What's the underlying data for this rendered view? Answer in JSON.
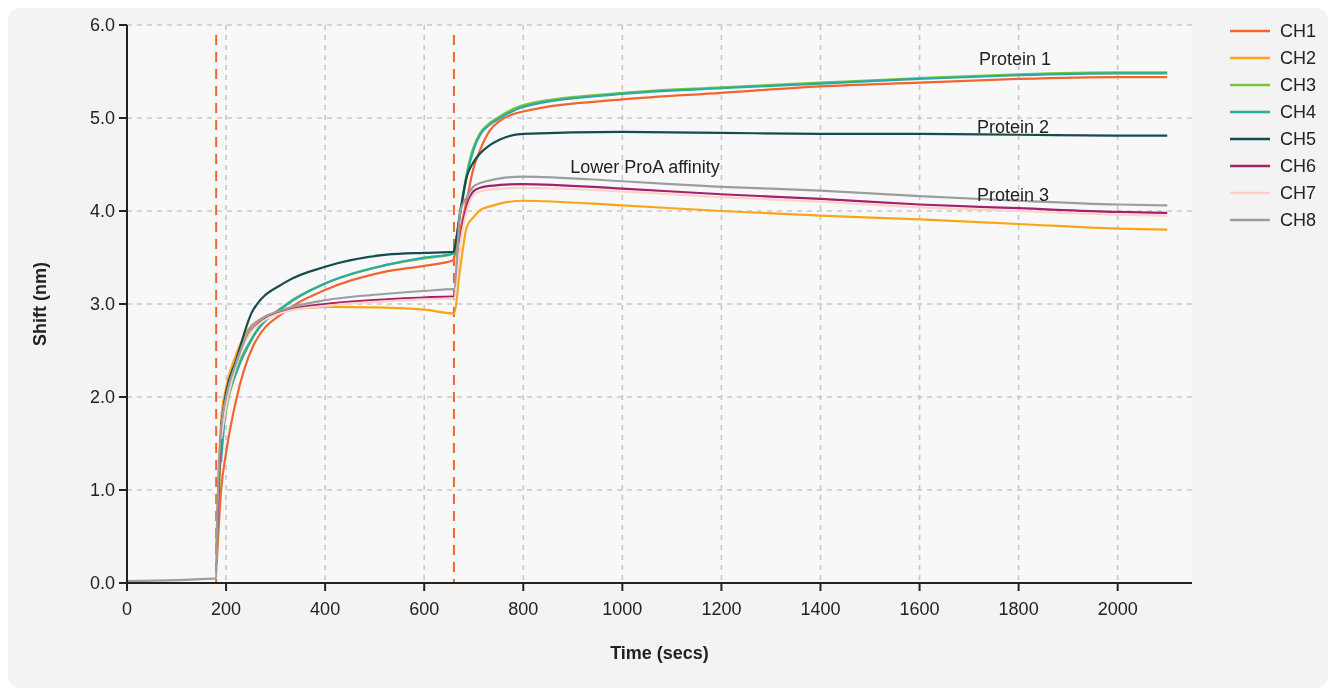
{
  "chart_data": {
    "type": "line",
    "xlabel": "Time (secs)",
    "ylabel": "Shift (nm)",
    "x": [
      0,
      180,
      181,
      190,
      200,
      220,
      254,
      322,
      400,
      524,
      600,
      659,
      660,
      673,
      686,
      699,
      713,
      733,
      753,
      800,
      1000,
      1200,
      1400,
      1600,
      1800,
      2000,
      2100
    ],
    "series": [
      {
        "name": "CH1",
        "color": "#f26430",
        "values": [
          null,
          null,
          0.2,
          1.0,
          1.4,
          1.96,
          2.54,
          2.93,
          3.15,
          3.35,
          3.41,
          3.47,
          3.49,
          3.8,
          4.12,
          4.45,
          4.66,
          4.87,
          4.97,
          5.07,
          5.2,
          5.27,
          5.34,
          5.38,
          5.42,
          5.44,
          5.44
        ]
      },
      {
        "name": "CH2",
        "color": "#f9a51a",
        "values": [
          null,
          null,
          0.5,
          1.75,
          2.1,
          2.45,
          2.78,
          2.93,
          2.97,
          2.96,
          2.94,
          2.9,
          2.9,
          3.4,
          3.83,
          3.93,
          4.01,
          4.05,
          4.08,
          4.11,
          4.06,
          4.0,
          3.95,
          3.91,
          3.86,
          3.81,
          3.8
        ]
      },
      {
        "name": "CH3",
        "color": "#7dc242",
        "values": [
          null,
          null,
          0.3,
          1.45,
          1.85,
          2.27,
          2.65,
          3.0,
          3.22,
          3.42,
          3.49,
          3.54,
          3.56,
          4.0,
          4.41,
          4.68,
          4.84,
          4.95,
          5.02,
          5.14,
          5.27,
          5.33,
          5.38,
          5.43,
          5.47,
          5.49,
          5.49
        ]
      },
      {
        "name": "CH4",
        "color": "#2aaba0",
        "values": [
          null,
          null,
          null,
          1.3,
          1.9,
          2.25,
          2.64,
          2.99,
          3.22,
          3.42,
          3.5,
          3.54,
          3.56,
          3.98,
          4.38,
          4.65,
          4.82,
          4.93,
          5.0,
          5.12,
          5.26,
          5.32,
          5.37,
          5.42,
          5.46,
          5.48,
          5.48
        ]
      },
      {
        "name": "CH5",
        "color": "#174c4f",
        "values": [
          null,
          null,
          null,
          1.7,
          2.05,
          2.39,
          2.93,
          3.24,
          3.4,
          3.53,
          3.55,
          3.56,
          3.57,
          4.0,
          4.37,
          4.52,
          4.62,
          4.71,
          4.77,
          4.83,
          4.85,
          4.84,
          4.83,
          4.83,
          4.82,
          4.81,
          4.81
        ]
      },
      {
        "name": "CH6",
        "color": "#a3206e",
        "values": [
          null,
          null,
          0.4,
          1.6,
          1.95,
          2.36,
          2.73,
          2.93,
          3.0,
          3.05,
          3.07,
          3.08,
          3.08,
          3.7,
          4.05,
          4.21,
          4.25,
          4.27,
          4.28,
          4.29,
          4.24,
          4.18,
          4.13,
          4.07,
          4.03,
          3.99,
          3.98
        ]
      },
      {
        "name": "CH7",
        "color": "#fcd3c8",
        "values": [
          null,
          null,
          null,
          1.55,
          1.9,
          2.33,
          2.72,
          2.92,
          2.98,
          3.03,
          3.05,
          3.06,
          3.06,
          3.65,
          4.0,
          4.17,
          4.21,
          4.23,
          4.24,
          4.25,
          4.21,
          4.15,
          4.1,
          4.04,
          4.0,
          3.96,
          3.95
        ]
      },
      {
        "name": "CH8",
        "color": "#9b9ea1",
        "values": [
          0.02,
          0.05,
          0.42,
          1.65,
          2.0,
          2.36,
          2.77,
          2.95,
          3.04,
          3.11,
          3.14,
          3.16,
          3.16,
          4.0,
          4.15,
          4.26,
          4.3,
          4.33,
          4.35,
          4.37,
          4.32,
          4.26,
          4.22,
          4.16,
          4.11,
          4.07,
          4.06
        ]
      }
    ],
    "xlim": [
      0,
      2150
    ],
    "xticks": [
      0,
      200,
      400,
      600,
      800,
      1000,
      1200,
      1400,
      1600,
      1800,
      2000
    ],
    "ylim": [
      0,
      6
    ],
    "yticks": [
      {
        "value": 0,
        "label": "0.0"
      },
      {
        "value": 1,
        "label": "1.0"
      },
      {
        "value": 2,
        "label": "2.0"
      },
      {
        "value": 3,
        "label": "3.0"
      },
      {
        "value": 4,
        "label": "4.0"
      },
      {
        "value": 5,
        "label": "5.0"
      },
      {
        "value": 6,
        "label": "6.0"
      }
    ],
    "ref_lines": [
      {
        "axis": "x",
        "value": 180,
        "color": "#f26430",
        "line_style": "dashed"
      },
      {
        "axis": "x",
        "value": 660,
        "color": "#f26430",
        "line_style": "dashed"
      }
    ],
    "annotations": [
      "Protein 1",
      "Protein 2",
      "Protein 3",
      "Lower ProA affinity"
    ],
    "grid": true,
    "legend": "right",
    "marker": "none",
    "line_style": "solid"
  }
}
